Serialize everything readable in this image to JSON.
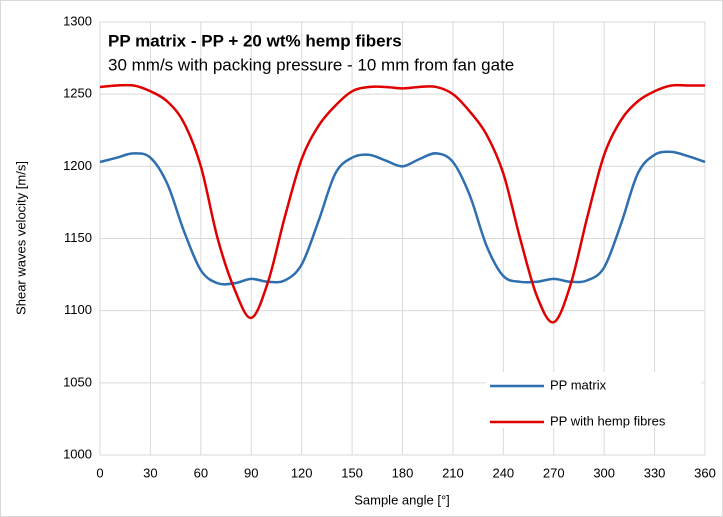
{
  "chart_data": {
    "type": "line",
    "title": "PP matrix - PP + 20 wt% hemp fibers",
    "subtitle": "30 mm/s with packing pressure - 10 mm from fan gate",
    "x_label": "Sample angle [°]",
    "y_label": "Shear waves velocity [m/s]",
    "x": [
      0,
      10,
      20,
      30,
      40,
      50,
      60,
      70,
      80,
      90,
      100,
      110,
      120,
      130,
      140,
      150,
      160,
      170,
      180,
      190,
      200,
      210,
      220,
      230,
      240,
      250,
      260,
      270,
      280,
      290,
      300,
      310,
      320,
      330,
      340,
      350,
      360
    ],
    "series": [
      {
        "name": "PP matrix",
        "color": "#2e6fb0",
        "values": [
          1203,
          1206,
          1209,
          1206,
          1188,
          1155,
          1128,
          1119,
          1119,
          1122,
          1120,
          1121,
          1132,
          1162,
          1195,
          1206,
          1208,
          1204,
          1200,
          1205,
          1209,
          1203,
          1180,
          1145,
          1124,
          1120,
          1120,
          1122,
          1120,
          1121,
          1130,
          1160,
          1195,
          1208,
          1210,
          1207,
          1203
        ]
      },
      {
        "name": "PP with hemp fibres",
        "color": "#e00000",
        "values": [
          1255,
          1256,
          1256,
          1252,
          1245,
          1230,
          1200,
          1150,
          1115,
          1095,
          1120,
          1165,
          1205,
          1228,
          1242,
          1252,
          1255,
          1255,
          1254,
          1255,
          1255,
          1250,
          1238,
          1222,
          1195,
          1150,
          1110,
          1092,
          1118,
          1165,
          1208,
          1232,
          1245,
          1252,
          1256,
          1256,
          1256
        ]
      }
    ],
    "xlim": [
      0,
      360
    ],
    "xticks": [
      0,
      30,
      60,
      90,
      120,
      150,
      180,
      210,
      240,
      270,
      300,
      330,
      360
    ],
    "ylim": [
      1000,
      1300
    ],
    "yticks": [
      1000,
      1050,
      1100,
      1150,
      1200,
      1250,
      1300
    ],
    "grid": true,
    "legend": "lower right"
  }
}
